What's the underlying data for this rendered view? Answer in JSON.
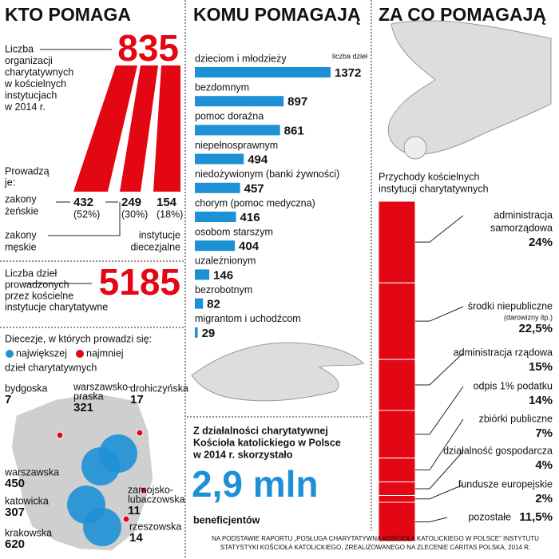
{
  "kto": {
    "title": "KTO POMAGA",
    "org_label": [
      "Liczba",
      "organizacji",
      "charytatywnych",
      "w kościelnych",
      "instytucjach",
      "w 2014 r."
    ],
    "org_count": "835",
    "led_label": [
      "Prowadzą",
      "je:"
    ],
    "groups": [
      {
        "label": [
          "zakony",
          "żeńskie"
        ],
        "value": "432",
        "share": "(52%)"
      },
      {
        "label": [
          "zakony",
          "męskie"
        ],
        "value": "249",
        "share": "(30%)"
      },
      {
        "label": [
          "instytucje",
          "diecezjalne"
        ],
        "value": "154",
        "share": "(18%)"
      }
    ],
    "works_label": [
      "Liczba dzieł",
      "prowadzonych",
      "przez kościelne",
      "instytucje charytatywne"
    ],
    "works_count": "5185",
    "map": {
      "title": "Diecezje, w których prowadzi się:",
      "legend_most": "największej",
      "legend_least": "najmniej",
      "subtitle": "dzieł charytatywnych",
      "most_color": "#1e90d6",
      "least_color": "#e30613",
      "dioceses": [
        {
          "name": [
            "bydgoska"
          ],
          "value": "7",
          "kind": "least"
        },
        {
          "name": [
            "warszawsko-",
            "praska"
          ],
          "value": "321",
          "kind": "most"
        },
        {
          "name": [
            "drohiczyńska"
          ],
          "value": "17",
          "kind": "least"
        },
        {
          "name": [
            "warszawska"
          ],
          "value": "450",
          "kind": "most"
        },
        {
          "name": [
            "katowicka"
          ],
          "value": "307",
          "kind": "most"
        },
        {
          "name": [
            "zamojsko-",
            "lubaczowska"
          ],
          "value": "11",
          "kind": "least"
        },
        {
          "name": [
            "krakowska"
          ],
          "value": "620",
          "kind": "most"
        },
        {
          "name": [
            "rzeszowska"
          ],
          "value": "14",
          "kind": "least"
        }
      ]
    }
  },
  "beneficiaries": {
    "text": [
      "Z działalności charytatywnej",
      "Kościoła katolickiego w Polsce",
      "w 2014 r. skorzystało"
    ],
    "value": "2,9 mln",
    "unit": "beneficjentów"
  },
  "chart_data": [
    {
      "type": "bar",
      "title": "KOMU POMAGAJĄ",
      "value_label": "liczba dzieł",
      "color": "#1e90d6",
      "categories": [
        "dzieciom i młodzieży",
        "bezdomnym",
        "pomoc doraźna",
        "niepełnosprawnym",
        "niedożywionym (banki żywności)",
        "chorym (pomoc medyczna)",
        "osobom starszym",
        "uzależnionym",
        "bezrobotnym",
        "migrantom i uchodźcom"
      ],
      "values": [
        1372,
        897,
        861,
        494,
        457,
        416,
        404,
        146,
        82,
        29
      ]
    },
    {
      "type": "stacked-bar",
      "title": "ZA CO POMAGAJĄ",
      "subtitle": [
        "Przychody kościelnych",
        "instytucji charytatywnych"
      ],
      "color": "#e30613",
      "categories": [
        [
          "administracja",
          "samorządowa"
        ],
        [
          "środki niepubliczne"
        ],
        [
          "administracja rządowa"
        ],
        [
          "odpis 1% podatku"
        ],
        [
          "zbiórki publiczne"
        ],
        [
          "działalność gospodarcza"
        ],
        [
          "fundusze europejskie"
        ],
        [
          "pozostałe"
        ]
      ],
      "notes": [
        null,
        "(darowizny itp.)",
        null,
        null,
        null,
        null,
        null,
        null
      ],
      "values": [
        24,
        22.5,
        15,
        14,
        7,
        4,
        2,
        11.5
      ],
      "value_labels": [
        "24%",
        "22,5%",
        "15%",
        "14%",
        "7%",
        "4%",
        "2%",
        "11,5%"
      ]
    }
  ],
  "source": [
    "NA PODSTAWIE RAPORTU „POSŁUGA CHARYTATYWNA KOŚCIOŁA KATOLICKIEGO W POLSCE” INSTYTUTU",
    "STATYSTYKI KOŚCIOŁA KATOLICKIEGO, ZREALIZOWANEGO NA ZLECENIE CARITAS POLSKA, 2014 R."
  ]
}
